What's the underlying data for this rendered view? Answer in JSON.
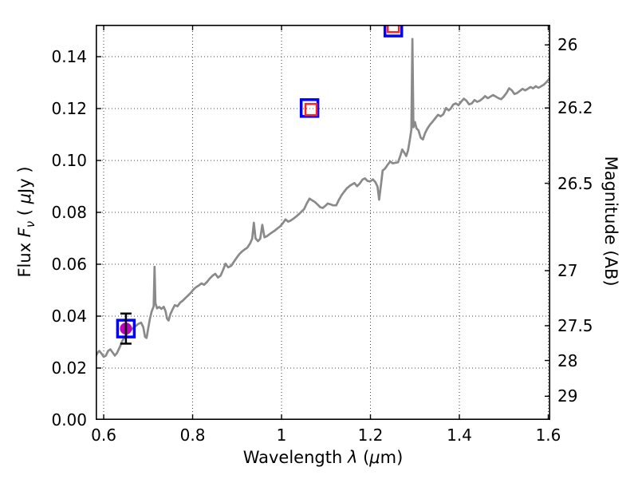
{
  "labels": {
    "xlabel": {
      "prefix": "Wavelength  ",
      "symbol": "λ",
      "unit_open": " (",
      "mu": "μ",
      "unit_close": "m)"
    },
    "ylabel_left": {
      "prefix": "Flux  ",
      "symbol": "F",
      "subscript": "ν",
      "unit_open": "  ( ",
      "mu": "μ",
      "unit_close": "Jy )"
    },
    "ylabel_right": "Magnitude (AB)"
  },
  "colors": {
    "spectrum_line": "#8a8a8a",
    "square_outer": "#0000ff",
    "square_inner": "#ff2222",
    "circle_fill": "#bf00bf",
    "errorbar": "#000000",
    "axis": "#000000",
    "grid": "#444444"
  },
  "chart_data": {
    "type": "line",
    "title": "",
    "xlabel": "Wavelength λ (μm)",
    "ylabel": "Flux Fν ( μJy )",
    "ylabel_right": "Magnitude (AB)",
    "xlim": [
      0.582,
      1.6045
    ],
    "ylim": [
      0.0,
      0.1523
    ],
    "grid": "dotted",
    "x_ticks": [
      {
        "v": 0.6,
        "label": "0.6"
      },
      {
        "v": 0.8,
        "label": "0.8"
      },
      {
        "v": 1.0,
        "label": "1"
      },
      {
        "v": 1.2,
        "label": "1.2"
      },
      {
        "v": 1.4,
        "label": "1.4"
      },
      {
        "v": 1.6,
        "label": "1.6"
      }
    ],
    "y_ticks_flux": [
      {
        "v": 0.0,
        "label": "0.00"
      },
      {
        "v": 0.02,
        "label": "0.02"
      },
      {
        "v": 0.04,
        "label": "0.04"
      },
      {
        "v": 0.06,
        "label": "0.06"
      },
      {
        "v": 0.08,
        "label": "0.08"
      },
      {
        "v": 0.1,
        "label": "0.10"
      },
      {
        "v": 0.12,
        "label": "0.12"
      },
      {
        "v": 0.14,
        "label": "0.14"
      }
    ],
    "y_ticks_mag": [
      {
        "label": "26",
        "flux": 0.14454
      },
      {
        "label": "26.2",
        "flux": 0.12023
      },
      {
        "label": "26.5",
        "flux": 0.0912
      },
      {
        "label": "27",
        "flux": 0.05754
      },
      {
        "label": "27.5",
        "flux": 0.03631
      },
      {
        "label": "28",
        "flux": 0.02291
      },
      {
        "label": "29",
        "flux": 0.00912
      }
    ],
    "series": [
      {
        "name": "model-spectrum",
        "type": "line",
        "points": [
          [
            0.582,
            0.0245
          ],
          [
            0.586,
            0.0258
          ],
          [
            0.59,
            0.0266
          ],
          [
            0.595,
            0.0256
          ],
          [
            0.6,
            0.0243
          ],
          [
            0.605,
            0.0248
          ],
          [
            0.61,
            0.0266
          ],
          [
            0.615,
            0.0272
          ],
          [
            0.62,
            0.026
          ],
          [
            0.625,
            0.0248
          ],
          [
            0.63,
            0.0258
          ],
          [
            0.636,
            0.028
          ],
          [
            0.642,
            0.0305
          ],
          [
            0.648,
            0.0322
          ],
          [
            0.654,
            0.0335
          ],
          [
            0.66,
            0.0345
          ],
          [
            0.666,
            0.0354
          ],
          [
            0.672,
            0.0362
          ],
          [
            0.678,
            0.037
          ],
          [
            0.684,
            0.0375
          ],
          [
            0.689,
            0.0358
          ],
          [
            0.693,
            0.032
          ],
          [
            0.6965,
            0.0316
          ],
          [
            0.7,
            0.0352
          ],
          [
            0.704,
            0.039
          ],
          [
            0.708,
            0.0418
          ],
          [
            0.7125,
            0.0438
          ],
          [
            0.7143,
            0.059
          ],
          [
            0.7163,
            0.045
          ],
          [
            0.72,
            0.043
          ],
          [
            0.725,
            0.0435
          ],
          [
            0.73,
            0.0428
          ],
          [
            0.735,
            0.0436
          ],
          [
            0.739,
            0.042
          ],
          [
            0.7425,
            0.039
          ],
          [
            0.746,
            0.0383
          ],
          [
            0.75,
            0.0408
          ],
          [
            0.755,
            0.0426
          ],
          [
            0.76,
            0.0442
          ],
          [
            0.766,
            0.0438
          ],
          [
            0.772,
            0.0452
          ],
          [
            0.778,
            0.046
          ],
          [
            0.784,
            0.047
          ],
          [
            0.79,
            0.048
          ],
          [
            0.796,
            0.049
          ],
          [
            0.802,
            0.0503
          ],
          [
            0.808,
            0.0512
          ],
          [
            0.814,
            0.0518
          ],
          [
            0.82,
            0.0526
          ],
          [
            0.826,
            0.0521
          ],
          [
            0.832,
            0.0531
          ],
          [
            0.838,
            0.0544
          ],
          [
            0.845,
            0.0556
          ],
          [
            0.851,
            0.0563
          ],
          [
            0.857,
            0.0549
          ],
          [
            0.863,
            0.0556
          ],
          [
            0.869,
            0.058
          ],
          [
            0.874,
            0.0602
          ],
          [
            0.88,
            0.0588
          ],
          [
            0.887,
            0.0594
          ],
          [
            0.893,
            0.061
          ],
          [
            0.899,
            0.0625
          ],
          [
            0.905,
            0.0639
          ],
          [
            0.911,
            0.0649
          ],
          [
            0.917,
            0.0657
          ],
          [
            0.923,
            0.0664
          ],
          [
            0.929,
            0.0679
          ],
          [
            0.934,
            0.0698
          ],
          [
            0.9378,
            0.076
          ],
          [
            0.9415,
            0.07
          ],
          [
            0.947,
            0.0689
          ],
          [
            0.952,
            0.0698
          ],
          [
            0.9568,
            0.0752
          ],
          [
            0.9615,
            0.0704
          ],
          [
            0.967,
            0.0708
          ],
          [
            0.973,
            0.0716
          ],
          [
            0.979,
            0.0723
          ],
          [
            0.985,
            0.073
          ],
          [
            0.991,
            0.0738
          ],
          [
            0.997,
            0.0746
          ],
          [
            1.003,
            0.0758
          ],
          [
            1.009,
            0.0773
          ],
          [
            1.015,
            0.0764
          ],
          [
            1.021,
            0.0769
          ],
          [
            1.027,
            0.0776
          ],
          [
            1.033,
            0.0784
          ],
          [
            1.039,
            0.0793
          ],
          [
            1.045,
            0.0803
          ],
          [
            1.051,
            0.0813
          ],
          [
            1.057,
            0.0835
          ],
          [
            1.063,
            0.0853
          ],
          [
            1.069,
            0.0846
          ],
          [
            1.075,
            0.084
          ],
          [
            1.081,
            0.083
          ],
          [
            1.087,
            0.082
          ],
          [
            1.0925,
            0.0817
          ],
          [
            1.098,
            0.0824
          ],
          [
            1.104,
            0.0834
          ],
          [
            1.11,
            0.0831
          ],
          [
            1.116,
            0.0827
          ],
          [
            1.123,
            0.0827
          ],
          [
            1.129,
            0.0848
          ],
          [
            1.135,
            0.0866
          ],
          [
            1.141,
            0.088
          ],
          [
            1.147,
            0.0893
          ],
          [
            1.155,
            0.0904
          ],
          [
            1.164,
            0.0913
          ],
          [
            1.17,
            0.0901
          ],
          [
            1.176,
            0.0911
          ],
          [
            1.182,
            0.0926
          ],
          [
            1.1875,
            0.0931
          ],
          [
            1.1935,
            0.0921
          ],
          [
            1.199,
            0.0919
          ],
          [
            1.2055,
            0.0927
          ],
          [
            1.211,
            0.0917
          ],
          [
            1.216,
            0.0899
          ],
          [
            1.2195,
            0.0849
          ],
          [
            1.2235,
            0.0903
          ],
          [
            1.2275,
            0.0961
          ],
          [
            1.233,
            0.0969
          ],
          [
            1.239,
            0.0984
          ],
          [
            1.2445,
            0.0996
          ],
          [
            1.25,
            0.0989
          ],
          [
            1.256,
            0.0991
          ],
          [
            1.262,
            0.0993
          ],
          [
            1.2675,
            0.1019
          ],
          [
            1.2715,
            0.1042
          ],
          [
            1.2765,
            0.1029
          ],
          [
            1.2805,
            0.1017
          ],
          [
            1.2845,
            0.1038
          ],
          [
            1.2885,
            0.1078
          ],
          [
            1.292,
            0.1118
          ],
          [
            1.2943,
            0.1468
          ],
          [
            1.2967,
            0.1128
          ],
          [
            1.3,
            0.1148
          ],
          [
            1.3035,
            0.1124
          ],
          [
            1.308,
            0.1116
          ],
          [
            1.313,
            0.1088
          ],
          [
            1.318,
            0.1081
          ],
          [
            1.323,
            0.1106
          ],
          [
            1.328,
            0.1123
          ],
          [
            1.334,
            0.1138
          ],
          [
            1.34,
            0.115
          ],
          [
            1.346,
            0.1163
          ],
          [
            1.352,
            0.1176
          ],
          [
            1.358,
            0.117
          ],
          [
            1.364,
            0.1178
          ],
          [
            1.37,
            0.1202
          ],
          [
            1.376,
            0.1193
          ],
          [
            1.381,
            0.1201
          ],
          [
            1.386,
            0.1215
          ],
          [
            1.392,
            0.122
          ],
          [
            1.398,
            0.1213
          ],
          [
            1.404,
            0.1226
          ],
          [
            1.41,
            0.1238
          ],
          [
            1.416,
            0.123
          ],
          [
            1.422,
            0.1216
          ],
          [
            1.428,
            0.122
          ],
          [
            1.434,
            0.1233
          ],
          [
            1.44,
            0.1226
          ],
          [
            1.446,
            0.123
          ],
          [
            1.452,
            0.1238
          ],
          [
            1.458,
            0.1248
          ],
          [
            1.464,
            0.124
          ],
          [
            1.47,
            0.1246
          ],
          [
            1.476,
            0.1252
          ],
          [
            1.482,
            0.1246
          ],
          [
            1.488,
            0.124
          ],
          [
            1.494,
            0.1236
          ],
          [
            1.5,
            0.1246
          ],
          [
            1.506,
            0.126
          ],
          [
            1.512,
            0.1278
          ],
          [
            1.518,
            0.127
          ],
          [
            1.524,
            0.1256
          ],
          [
            1.53,
            0.126
          ],
          [
            1.536,
            0.1268
          ],
          [
            1.542,
            0.1276
          ],
          [
            1.548,
            0.127
          ],
          [
            1.554,
            0.1276
          ],
          [
            1.56,
            0.1283
          ],
          [
            1.566,
            0.1278
          ],
          [
            1.572,
            0.1286
          ],
          [
            1.578,
            0.128
          ],
          [
            1.584,
            0.1286
          ],
          [
            1.59,
            0.1292
          ],
          [
            1.596,
            0.1302
          ],
          [
            1.601,
            0.1312
          ],
          [
            1.6045,
            0.132
          ]
        ]
      },
      {
        "name": "observed-photometry-errorbar",
        "type": "errorbar",
        "points": [
          {
            "x": 0.65,
            "flux": 0.0352,
            "err": 0.0058
          }
        ]
      },
      {
        "name": "photometry-blue-open-squares",
        "type": "open-square-large",
        "points": [
          {
            "x": 0.65,
            "flux": 0.0352
          },
          {
            "x": 1.063,
            "flux": 0.1202
          },
          {
            "x": 1.2515,
            "flux": 0.1512
          }
        ]
      },
      {
        "name": "model-photometry-red-open-squares",
        "type": "open-square-small",
        "points": [
          {
            "x": 1.0665,
            "flux": 0.1196
          },
          {
            "x": 1.2515,
            "flux": 0.1516
          }
        ]
      },
      {
        "name": "observed-photometry-circle",
        "type": "filled-circle",
        "points": [
          {
            "x": 0.65,
            "flux": 0.0352
          }
        ]
      }
    ]
  }
}
